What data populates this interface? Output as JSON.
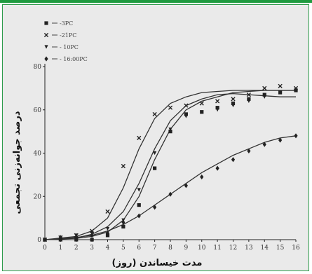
{
  "chart_data": {
    "type": "scatter",
    "xlabel": "مدت خیساندن (روز)",
    "ylabel": "درصد جوانه‌زنی تجمعی",
    "x_ticks": [
      "0",
      "1",
      "2",
      "3",
      "4",
      "5",
      "6",
      "7",
      "8",
      "9",
      "10",
      "11",
      "12",
      "13",
      "14",
      "15",
      "16"
    ],
    "y_ticks": [
      "0",
      "20",
      "40",
      "60",
      "80"
    ],
    "xlim": [
      0,
      16
    ],
    "ylim": [
      0,
      80
    ],
    "legend_position": "top-left",
    "series": [
      {
        "name": "-3PC",
        "marker": "square",
        "x": [
          0,
          1,
          2,
          3,
          4,
          5,
          6,
          7,
          8,
          9,
          10,
          11,
          12,
          13,
          14,
          15,
          16
        ],
        "y": [
          0,
          0,
          0,
          0,
          2,
          6,
          16,
          33,
          50,
          58,
          59,
          61,
          63,
          65,
          67,
          68,
          69
        ],
        "curve": [
          [
            0,
            0
          ],
          [
            2,
            0.6
          ],
          [
            3,
            1.5
          ],
          [
            4,
            3.5
          ],
          [
            5,
            9
          ],
          [
            6,
            20
          ],
          [
            7,
            37
          ],
          [
            8,
            51
          ],
          [
            9,
            60
          ],
          [
            10,
            64
          ],
          [
            11,
            66
          ],
          [
            12,
            68
          ],
          [
            13,
            68.5
          ],
          [
            14,
            69
          ],
          [
            15,
            69
          ],
          [
            16,
            69
          ]
        ]
      },
      {
        "name": "-21PC",
        "marker": "x",
        "x": [
          0,
          1,
          2,
          3,
          4,
          5,
          6,
          7,
          8,
          9,
          10,
          11,
          12,
          13,
          14,
          15,
          16
        ],
        "y": [
          0,
          1,
          2,
          4,
          13,
          34,
          47,
          58,
          61,
          62,
          63,
          64,
          65,
          67,
          70,
          71,
          70
        ],
        "curve": [
          [
            0,
            0
          ],
          [
            2,
            1.5
          ],
          [
            3,
            4
          ],
          [
            4,
            10
          ],
          [
            5,
            24
          ],
          [
            6,
            42
          ],
          [
            7,
            56
          ],
          [
            8,
            63
          ],
          [
            9,
            66
          ],
          [
            10,
            68
          ],
          [
            11,
            68.5
          ],
          [
            12,
            69
          ],
          [
            13,
            69
          ],
          [
            14,
            69
          ],
          [
            15,
            69
          ],
          [
            16,
            69
          ]
        ]
      },
      {
        "name": "- 10PC",
        "marker": "triangle",
        "x": [
          0,
          1,
          2,
          3,
          4,
          5,
          6,
          7,
          8,
          9,
          10,
          11,
          12,
          13,
          14,
          15,
          16
        ],
        "y": [
          0,
          1,
          2,
          3,
          5,
          9,
          23,
          40,
          51,
          57,
          59,
          60,
          62,
          64,
          66,
          68,
          69
        ],
        "curve": [
          [
            0,
            0
          ],
          [
            2,
            0.8
          ],
          [
            3,
            2.5
          ],
          [
            4,
            6
          ],
          [
            5,
            13
          ],
          [
            6,
            26
          ],
          [
            7,
            42
          ],
          [
            8,
            55
          ],
          [
            9,
            62
          ],
          [
            10,
            65
          ],
          [
            11,
            67
          ],
          [
            12,
            67.5
          ],
          [
            13,
            67
          ],
          [
            14,
            66.5
          ],
          [
            15,
            66
          ],
          [
            16,
            66
          ]
        ]
      },
      {
        "name": "- 16:00PC",
        "marker": "diamond",
        "x": [
          0,
          1,
          2,
          3,
          4,
          5,
          6,
          7,
          8,
          9,
          10,
          11,
          12,
          13,
          14,
          15,
          16
        ],
        "y": [
          0,
          1,
          1,
          2,
          3,
          8,
          11,
          15,
          21,
          25,
          29,
          33,
          37,
          41,
          44,
          46,
          48
        ],
        "curve": [
          [
            0,
            0
          ],
          [
            2,
            1
          ],
          [
            3,
            2
          ],
          [
            4,
            4
          ],
          [
            5,
            7
          ],
          [
            6,
            11
          ],
          [
            7,
            16
          ],
          [
            8,
            21
          ],
          [
            9,
            26
          ],
          [
            10,
            31
          ],
          [
            11,
            35
          ],
          [
            12,
            39
          ],
          [
            13,
            42
          ],
          [
            14,
            45
          ],
          [
            15,
            47
          ],
          [
            16,
            48
          ]
        ]
      }
    ]
  },
  "colors": {
    "panel_background": "#eaeaea",
    "panel_border": "#2f9c4c",
    "top_bar": "#1f9a3f",
    "ink": "#222222"
  }
}
